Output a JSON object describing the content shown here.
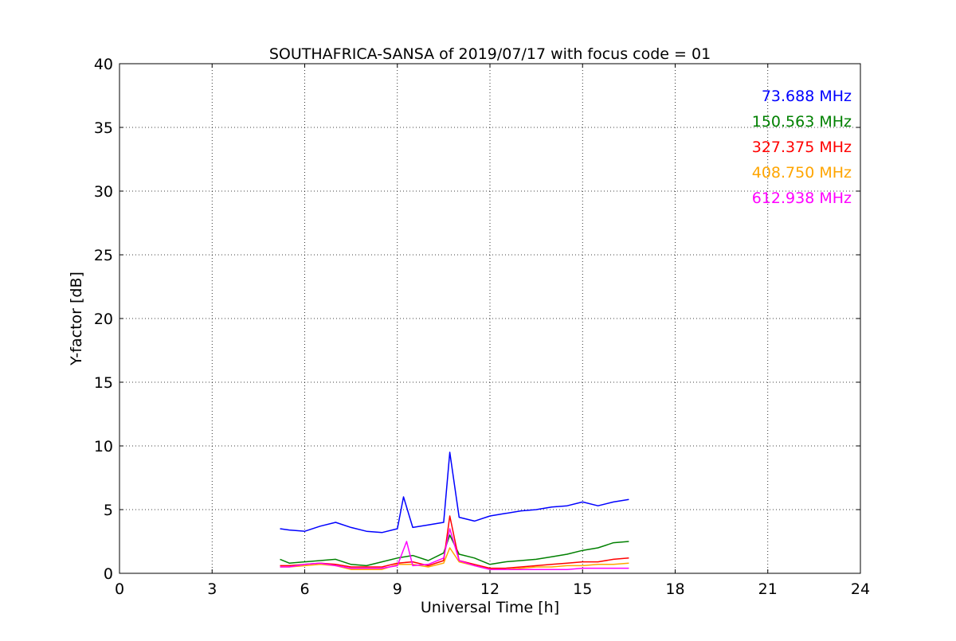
{
  "chart_data": {
    "type": "line",
    "title": "SOUTHAFRICA-SANSA of 2019/07/17 with focus code = 01",
    "xlabel": "Universal Time [h]",
    "ylabel": "Y-factor [dB]",
    "xlim": [
      0,
      24
    ],
    "ylim": [
      0,
      40
    ],
    "xticks": [
      0,
      3,
      6,
      9,
      12,
      15,
      18,
      21,
      24
    ],
    "yticks": [
      0,
      5,
      10,
      15,
      20,
      25,
      30,
      35,
      40
    ],
    "grid": true,
    "legend_position": "top-right",
    "series": [
      {
        "name": "73.688 MHz",
        "color": "#0000ff",
        "x": [
          5.2,
          5.5,
          6.0,
          6.5,
          7.0,
          7.5,
          8.0,
          8.5,
          9.0,
          9.2,
          9.5,
          10.0,
          10.5,
          10.7,
          11.0,
          11.5,
          12.0,
          12.5,
          13.0,
          13.5,
          14.0,
          14.5,
          15.0,
          15.5,
          16.0,
          16.5
        ],
        "values": [
          3.5,
          3.4,
          3.3,
          3.7,
          4.0,
          3.6,
          3.3,
          3.2,
          3.5,
          6.0,
          3.6,
          3.8,
          4.0,
          9.5,
          4.4,
          4.1,
          4.5,
          4.7,
          4.9,
          5.0,
          5.2,
          5.3,
          5.6,
          5.3,
          5.6,
          5.8
        ]
      },
      {
        "name": "150.563 MHz",
        "color": "#008000",
        "x": [
          5.2,
          5.5,
          6.0,
          6.5,
          7.0,
          7.5,
          8.0,
          8.5,
          9.0,
          9.5,
          10.0,
          10.5,
          10.7,
          11.0,
          11.5,
          12.0,
          12.5,
          13.0,
          13.5,
          14.0,
          14.5,
          15.0,
          15.5,
          16.0,
          16.5
        ],
        "values": [
          1.1,
          0.8,
          0.9,
          1.0,
          1.1,
          0.7,
          0.6,
          0.9,
          1.2,
          1.4,
          1.0,
          1.6,
          3.0,
          1.5,
          1.2,
          0.7,
          0.9,
          1.0,
          1.1,
          1.3,
          1.5,
          1.8,
          2.0,
          2.4,
          2.5
        ]
      },
      {
        "name": "327.375 MHz",
        "color": "#ff0000",
        "x": [
          5.2,
          5.5,
          6.0,
          6.5,
          7.0,
          7.5,
          8.0,
          8.5,
          9.0,
          9.5,
          10.0,
          10.5,
          10.7,
          11.0,
          11.5,
          12.0,
          12.5,
          13.0,
          13.5,
          14.0,
          14.5,
          15.0,
          15.5,
          16.0,
          16.5
        ],
        "values": [
          0.6,
          0.6,
          0.7,
          0.8,
          0.7,
          0.5,
          0.5,
          0.5,
          0.8,
          0.9,
          0.6,
          1.0,
          4.5,
          1.0,
          0.7,
          0.4,
          0.4,
          0.5,
          0.6,
          0.7,
          0.8,
          0.9,
          0.9,
          1.1,
          1.2
        ]
      },
      {
        "name": "408.750 MHz",
        "color": "#ffa500",
        "x": [
          5.2,
          5.5,
          6.0,
          6.5,
          7.0,
          7.5,
          8.0,
          8.5,
          9.0,
          9.5,
          10.0,
          10.5,
          10.7,
          11.0,
          11.5,
          12.0,
          12.5,
          13.0,
          13.5,
          14.0,
          14.5,
          15.0,
          15.5,
          16.0,
          16.5
        ],
        "values": [
          0.5,
          0.5,
          0.6,
          0.7,
          0.6,
          0.3,
          0.3,
          0.3,
          0.7,
          0.7,
          0.5,
          0.8,
          2.0,
          0.9,
          0.6,
          0.3,
          0.3,
          0.4,
          0.5,
          0.5,
          0.6,
          0.6,
          0.7,
          0.7,
          0.8
        ]
      },
      {
        "name": "612.938 MHz",
        "color": "#ff00ff",
        "x": [
          5.2,
          5.5,
          6.0,
          6.5,
          7.0,
          7.5,
          8.0,
          8.5,
          9.0,
          9.3,
          9.5,
          10.0,
          10.5,
          10.7,
          11.0,
          11.5,
          12.0,
          12.5,
          13.0,
          13.5,
          14.0,
          14.5,
          15.0,
          15.5,
          16.0,
          16.5
        ],
        "values": [
          0.5,
          0.5,
          0.7,
          0.8,
          0.6,
          0.4,
          0.4,
          0.4,
          0.6,
          2.5,
          0.6,
          0.7,
          1.2,
          3.5,
          1.0,
          0.6,
          0.3,
          0.3,
          0.3,
          0.3,
          0.3,
          0.3,
          0.4,
          0.4,
          0.4,
          0.4
        ]
      }
    ]
  }
}
